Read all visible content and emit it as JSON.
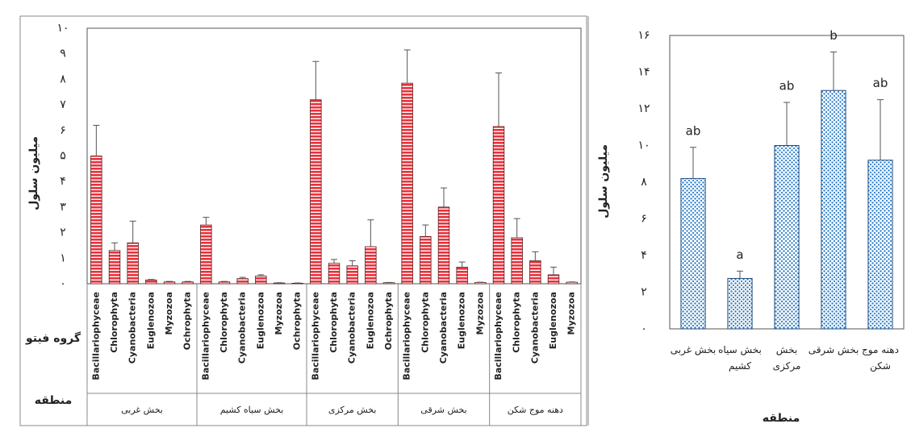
{
  "chart_data": [
    {
      "type": "grouped-bar",
      "y_label": "میلیون سلول",
      "row_labels": [
        "گروه فیتو",
        "منطقه"
      ],
      "color": "#e8323c",
      "ylim": [
        0,
        10
      ],
      "yticks": [
        {
          "value": 0,
          "label": "۰"
        },
        {
          "value": 1,
          "label": "۱"
        },
        {
          "value": 2,
          "label": "۲"
        },
        {
          "value": 3,
          "label": "۳"
        },
        {
          "value": 4,
          "label": "۴"
        },
        {
          "value": 5,
          "label": "۵"
        },
        {
          "value": 6,
          "label": "۶"
        },
        {
          "value": 7,
          "label": "۷"
        },
        {
          "value": 8,
          "label": "۸"
        },
        {
          "value": 9,
          "label": "۹"
        },
        {
          "value": 10,
          "label": "۱۰"
        }
      ],
      "groups": [
        {
          "name": "بخش غربی",
          "categories": [
            "Bacillariophyceae",
            "Chlorophyta",
            "Cyanobacteria",
            "Euglenozoa",
            "Myzozoa",
            "Ochrophyta"
          ],
          "values": [
            5.0,
            1.3,
            1.6,
            0.15,
            0.07,
            0.07
          ],
          "errors": [
            1.2,
            0.3,
            0.85,
            0.02,
            0.02,
            0.02
          ]
        },
        {
          "name": "بخش سیاه کشیم",
          "categories": [
            "Bacillariophyceae",
            "Chlorophyta",
            "Cyanobacteria",
            "Euglenozoa",
            "Myzozoa",
            "Ochrophyta"
          ],
          "values": [
            2.3,
            0.07,
            0.2,
            0.3,
            0.03,
            0.02
          ],
          "errors": [
            0.3,
            0.02,
            0.05,
            0.05,
            0.01,
            0.01
          ]
        },
        {
          "name": "بخش مرکزی",
          "categories": [
            "Bacillariophyceae",
            "Chlorophyta",
            "Cyanobacteria",
            "Euglenozoa",
            "Ochrophyta"
          ],
          "values": [
            7.2,
            0.8,
            0.7,
            1.45,
            0.04
          ],
          "errors": [
            1.5,
            0.15,
            0.2,
            1.05,
            0.01
          ]
        },
        {
          "name": "بخش شرقی",
          "categories": [
            "Bacillariophyceae",
            "Chlorophyta",
            "Cyanobacteria",
            "Euglenozoa",
            "Myzozoa"
          ],
          "values": [
            7.85,
            1.85,
            3.0,
            0.65,
            0.05
          ],
          "errors": [
            1.3,
            0.45,
            0.75,
            0.2,
            0.01
          ]
        },
        {
          "name": "دهنه موج شکن",
          "categories": [
            "Bacillariophyceae",
            "Chlorophyta",
            "Cyanobacteria",
            "Euglenozoa",
            "Myzozoa"
          ],
          "values": [
            6.15,
            1.8,
            0.9,
            0.35,
            0.06
          ],
          "errors": [
            2.1,
            0.75,
            0.35,
            0.3,
            0.01
          ]
        }
      ]
    },
    {
      "type": "bar",
      "y_label": "میلیون سلول",
      "x_label": "منطقه",
      "color": "#2f7fc9",
      "categories": [
        "بخش غربی",
        "بخش سیاه کشیم",
        "بخش مرکزی",
        "بخش شرقی",
        "دهنه موج شکن"
      ],
      "values": [
        8.2,
        2.75,
        10.0,
        13.0,
        9.2
      ],
      "errors": [
        1.7,
        0.4,
        2.35,
        2.1,
        3.3
      ],
      "significance_labels": [
        "ab",
        "a",
        "ab",
        "b",
        "ab"
      ],
      "ylim": [
        0,
        16
      ],
      "yticks": [
        {
          "value": 0,
          "label": "۰"
        },
        {
          "value": 2,
          "label": "۲"
        },
        {
          "value": 4,
          "label": "۴"
        },
        {
          "value": 6,
          "label": "۶"
        },
        {
          "value": 8,
          "label": "۸"
        },
        {
          "value": 10,
          "label": "۱۰"
        },
        {
          "value": 12,
          "label": "۱۲"
        },
        {
          "value": 14,
          "label": "۱۴"
        },
        {
          "value": 16,
          "label": "۱۶"
        }
      ]
    }
  ]
}
